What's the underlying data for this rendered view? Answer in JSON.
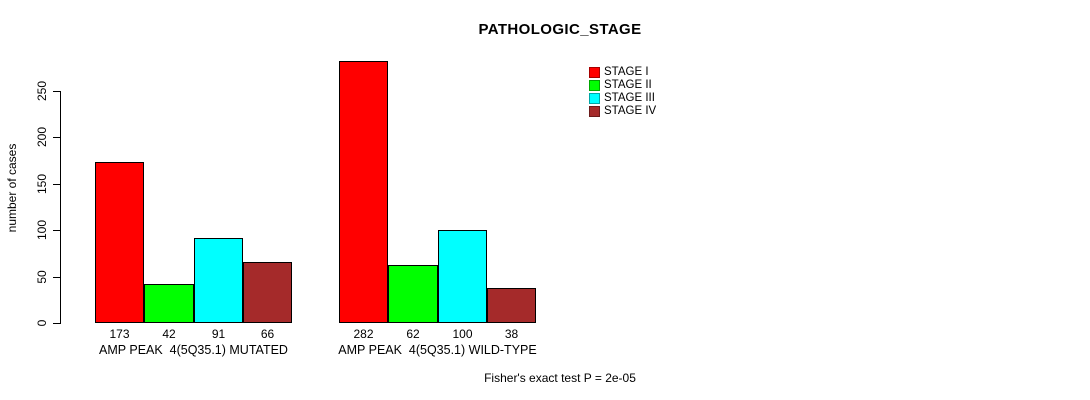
{
  "title": "PATHOLOGIC_STAGE",
  "ylabel": "number of cases",
  "footer": {
    "text": "Fisher's exact test P = 2e-05"
  },
  "chart_data": {
    "type": "bar",
    "title": "PATHOLOGIC_STAGE",
    "xlabel": "",
    "ylabel": "number of cases",
    "ylim": [
      0,
      250
    ],
    "yticks": [
      0,
      50,
      100,
      150,
      200,
      250
    ],
    "grid": false,
    "legend_position": "top-right",
    "categories": [
      "AMP PEAK  4(5Q35.1) MUTATED",
      "AMP PEAK  4(5Q35.1) WILD-TYPE"
    ],
    "series": [
      {
        "name": "STAGE I",
        "color": "#ff0000",
        "values": [
          173,
          282
        ]
      },
      {
        "name": "STAGE II",
        "color": "#00ff00",
        "values": [
          42,
          62
        ]
      },
      {
        "name": "STAGE III",
        "color": "#00ffff",
        "values": [
          91,
          100
        ]
      },
      {
        "name": "STAGE IV",
        "color": "#a52a2a",
        "values": [
          66,
          38
        ]
      }
    ],
    "bar_value_labels": [
      [
        173,
        42,
        91,
        66
      ],
      [
        282,
        62,
        100,
        38
      ]
    ],
    "annotation": "Fisher's exact test P = 2e-05"
  }
}
